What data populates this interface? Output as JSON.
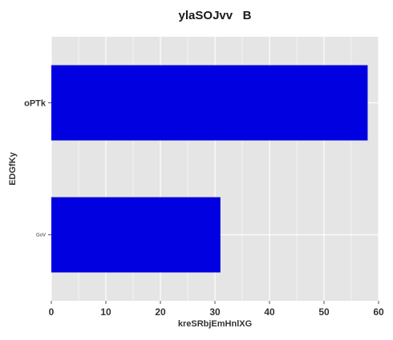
{
  "chart_data": {
    "type": "bar",
    "orientation": "horizontal",
    "title": "ylaSOJvv   B",
    "xlabel": "kreSRbjEmHnlXG",
    "ylabel": "EDGfKy",
    "categories": [
      "oPTk",
      "GoV"
    ],
    "values": [
      58,
      31
    ],
    "xlim": [
      0,
      60
    ],
    "xticks": [
      0,
      10,
      20,
      30,
      40,
      50,
      60
    ],
    "grid": true,
    "legend": "none",
    "colors": {
      "bar": "#0000e0",
      "plot_background": "#e5e5e5",
      "grid": "#ffffff",
      "text": "#333333"
    }
  }
}
